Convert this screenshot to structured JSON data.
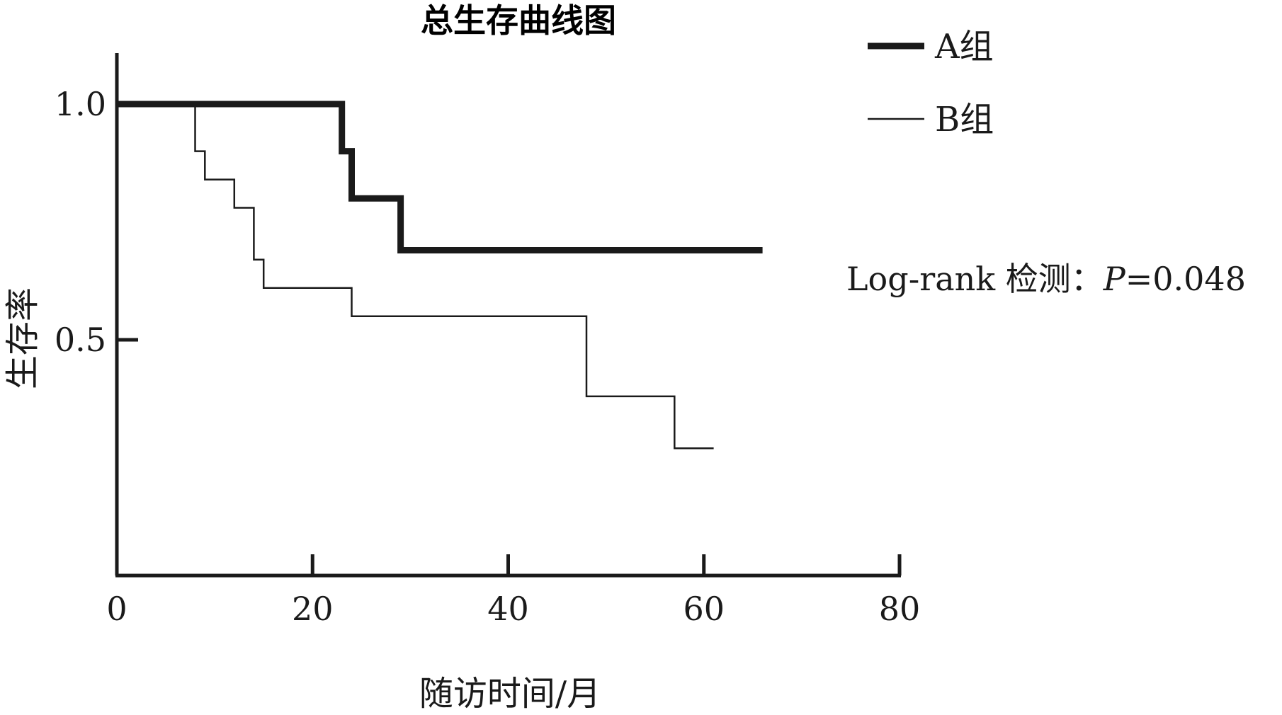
{
  "chart_data": {
    "type": "line",
    "step": true,
    "title": "总生存曲线图",
    "xlabel": "随访时间/月",
    "ylabel": "生存率",
    "xlim": [
      0,
      80
    ],
    "ylim": [
      0,
      1.1
    ],
    "x_ticks": [
      0,
      20,
      40,
      60,
      80
    ],
    "x_tick_labels": [
      "0",
      "20",
      "40",
      "60",
      "80"
    ],
    "y_ticks": [
      0.5,
      1.0
    ],
    "y_tick_labels": [
      "0.5",
      "1.0"
    ],
    "grid": false,
    "legend_placement": "top-right",
    "series": [
      {
        "name": "A组",
        "style": "thick",
        "color": "#1a1a1a",
        "points": [
          [
            0,
            1.0
          ],
          [
            23,
            1.0
          ],
          [
            23,
            0.9
          ],
          [
            24,
            0.9
          ],
          [
            24,
            0.8
          ],
          [
            29,
            0.8
          ],
          [
            29,
            0.69
          ],
          [
            66,
            0.69
          ]
        ]
      },
      {
        "name": "B组",
        "style": "thin",
        "color": "#1a1a1a",
        "points": [
          [
            0,
            1.0
          ],
          [
            8,
            1.0
          ],
          [
            8,
            0.9
          ],
          [
            9,
            0.9
          ],
          [
            9,
            0.84
          ],
          [
            12,
            0.84
          ],
          [
            12,
            0.78
          ],
          [
            14,
            0.78
          ],
          [
            14,
            0.67
          ],
          [
            15,
            0.67
          ],
          [
            15,
            0.61
          ],
          [
            24,
            0.61
          ],
          [
            24,
            0.55
          ],
          [
            48,
            0.55
          ],
          [
            48,
            0.38
          ],
          [
            57,
            0.38
          ],
          [
            57,
            0.27
          ],
          [
            61,
            0.27
          ]
        ]
      }
    ],
    "annotation": {
      "prefix": "Log-rank 检测：",
      "p_symbol": "P",
      "p_value": "=0.048"
    }
  }
}
